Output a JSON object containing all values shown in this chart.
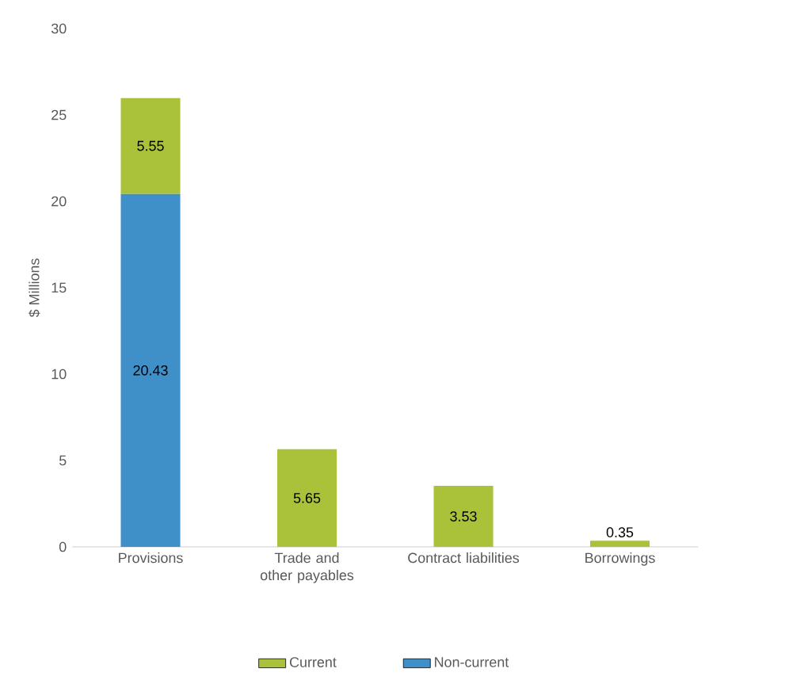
{
  "chart_data": {
    "type": "bar",
    "stacked": true,
    "ylabel": "$ Millions",
    "categories": [
      "Provisions",
      "Trade and other payables",
      "Contract liabilities",
      "Borrowings"
    ],
    "series": [
      {
        "name": "Non-current",
        "color": "#3f8fc9",
        "values": [
          20.43,
          null,
          null,
          null
        ],
        "value_labels": [
          "20.43",
          null,
          null,
          null
        ]
      },
      {
        "name": "Current",
        "color": "#a9c23a",
        "values": [
          5.55,
          5.65,
          3.53,
          0.35
        ],
        "value_labels": [
          "5.55",
          "5.65",
          "3.53",
          "0.35"
        ]
      }
    ],
    "ylim": [
      0,
      30
    ],
    "yticks": [
      0,
      5,
      10,
      15,
      20,
      25,
      30
    ],
    "legend": "bottom",
    "grid": false
  }
}
